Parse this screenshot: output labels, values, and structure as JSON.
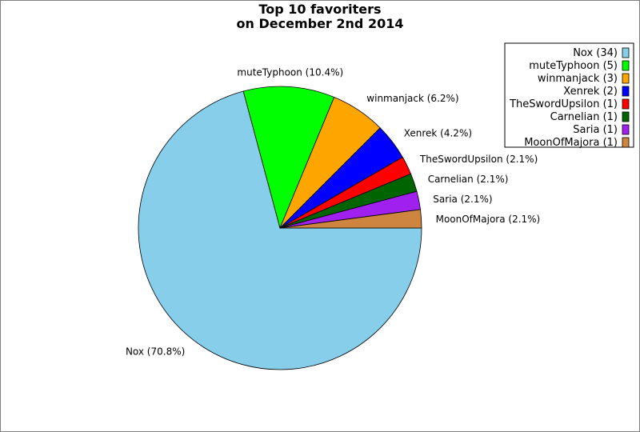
{
  "chart_data": {
    "type": "pie",
    "title_lines": [
      "Top 10 favoriters",
      "on December 2nd 2014"
    ],
    "slices": [
      {
        "name": "Nox",
        "value": 34,
        "percent": "70.8%",
        "color": "#87ceeb",
        "label": "Nox (70.8%)",
        "legend": "Nox (34)"
      },
      {
        "name": "muteTyphoon",
        "value": 5,
        "percent": "10.4%",
        "color": "#00ff00",
        "label": "muteTyphoon (10.4%)",
        "legend": "muteTyphoon (5)"
      },
      {
        "name": "winmanjack",
        "value": 3,
        "percent": "6.2%",
        "color": "#ffa500",
        "label": "winmanjack (6.2%)",
        "legend": "winmanjack (3)"
      },
      {
        "name": "Xenrek",
        "value": 2,
        "percent": "4.2%",
        "color": "#0000ff",
        "label": "Xenrek (4.2%)",
        "legend": "Xenrek (2)"
      },
      {
        "name": "TheSwordUpsilon",
        "value": 1,
        "percent": "2.1%",
        "color": "#ff0000",
        "label": "TheSwordUpsilon (2.1%)",
        "legend": "TheSwordUpsilon (1)"
      },
      {
        "name": "Carnelian",
        "value": 1,
        "percent": "2.1%",
        "color": "#006400",
        "label": "Carnelian (2.1%)",
        "legend": "Carnelian (1)"
      },
      {
        "name": "Saria",
        "value": 1,
        "percent": "2.1%",
        "color": "#a020f0",
        "label": "Saria (2.1%)",
        "legend": "Saria (1)"
      },
      {
        "name": "MoonOfMajora",
        "value": 1,
        "percent": "2.1%",
        "color": "#cd853f",
        "label": "MoonOfMajora (2.1%)",
        "legend": "MoonOfMajora (1)"
      }
    ],
    "start_angle_deg": 0,
    "direction": "clockwise",
    "legend_position": "top-right"
  }
}
